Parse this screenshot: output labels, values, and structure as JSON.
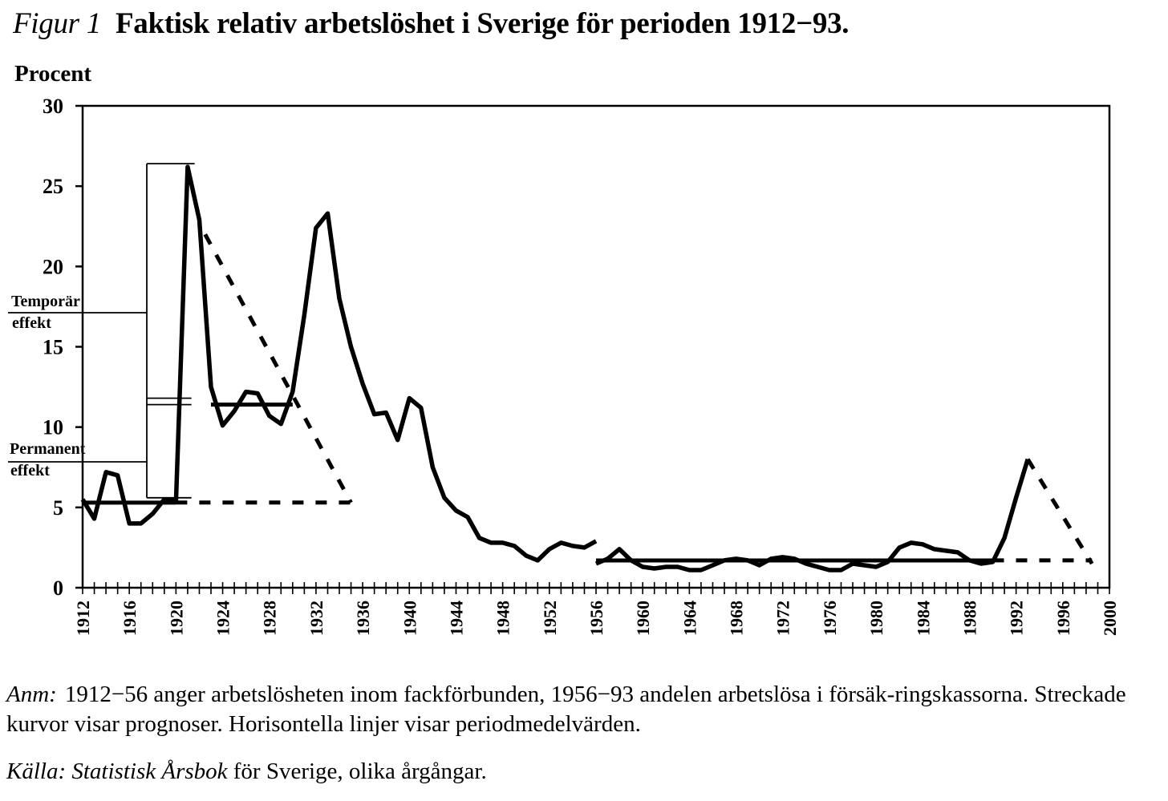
{
  "caption": {
    "figure_label": "Figur 1",
    "title": "Faktisk relativ arbetslöshet i Sverige för perioden 1912−93."
  },
  "note": {
    "lead": "Anm:",
    "text": "1912−56 anger arbetslösheten inom fackförbunden, 1956−93 andelen arbetslösa i försäk-ringskassorna. Streckade kurvor visar prognoser. Horisontella linjer visar periodmedelvärden."
  },
  "source": {
    "lead": "Källa:",
    "book": "Statistisk Årsbok",
    "rest": "för Sverige, olika årgångar."
  },
  "chart_data": {
    "type": "line",
    "ylabel": "Procent",
    "xlim": [
      1912,
      2000
    ],
    "ylim": [
      0,
      30
    ],
    "y_ticks": [
      0,
      5,
      10,
      15,
      20,
      25,
      30
    ],
    "x_tick_labels": [
      "1912",
      "1916",
      "1920",
      "1924",
      "1928",
      "1932",
      "1936",
      "1940",
      "1944",
      "1948",
      "1952",
      "1956",
      "1960",
      "1964",
      "1968",
      "1972",
      "1976",
      "1980",
      "1984",
      "1988",
      "1992",
      "1996",
      "2000"
    ],
    "grid": false,
    "series": [
      {
        "style": "solid",
        "x": [
          1912,
          1913,
          1914,
          1915,
          1916,
          1917,
          1918,
          1919,
          1920,
          1921,
          1922,
          1923,
          1924,
          1925,
          1926,
          1927,
          1928,
          1929,
          1930,
          1931,
          1932,
          1933,
          1934,
          1935,
          1936,
          1937,
          1938,
          1939,
          1940,
          1941,
          1942,
          1943,
          1944,
          1945,
          1946,
          1947,
          1948,
          1949,
          1950,
          1951,
          1952,
          1953,
          1954,
          1955,
          1956
        ],
        "y": [
          5.5,
          4.3,
          7.2,
          7.0,
          4.0,
          4.0,
          4.6,
          5.5,
          5.4,
          26.2,
          22.9,
          12.5,
          10.1,
          11.0,
          12.2,
          12.1,
          10.7,
          10.2,
          12.2,
          17.0,
          22.4,
          23.3,
          18.0,
          15.0,
          12.7,
          10.8,
          10.9,
          9.2,
          11.8,
          11.2,
          7.5,
          5.6,
          4.8,
          4.4,
          3.1,
          2.8,
          2.8,
          2.6,
          2.0,
          1.7,
          2.4,
          2.8,
          2.6,
          2.5,
          2.9
        ]
      },
      {
        "style": "solid",
        "x": [
          1956,
          1957,
          1958,
          1959,
          1960,
          1961,
          1962,
          1963,
          1964,
          1965,
          1966,
          1967,
          1968,
          1969,
          1970,
          1971,
          1972,
          1973,
          1974,
          1975,
          1976,
          1977,
          1978,
          1979,
          1980,
          1981,
          1982,
          1983,
          1984,
          1985,
          1986,
          1987,
          1988,
          1989,
          1990,
          1991,
          1992,
          1993
        ],
        "y": [
          1.5,
          1.8,
          2.4,
          1.7,
          1.3,
          1.2,
          1.3,
          1.3,
          1.1,
          1.1,
          1.4,
          1.7,
          1.8,
          1.7,
          1.4,
          1.8,
          1.9,
          1.8,
          1.5,
          1.3,
          1.1,
          1.1,
          1.5,
          1.4,
          1.3,
          1.6,
          2.5,
          2.8,
          2.7,
          2.4,
          2.3,
          2.2,
          1.7,
          1.5,
          1.6,
          3.1,
          5.6,
          8.0
        ]
      },
      {
        "style": "dashed",
        "x": [
          1922.5,
          1935
        ],
        "y": [
          22.0,
          5.3
        ]
      },
      {
        "style": "dashed",
        "x": [
          1920,
          1935
        ],
        "y": [
          5.3,
          5.3
        ]
      },
      {
        "style": "dashed",
        "x": [
          1993,
          1998.5
        ],
        "y": [
          8.0,
          1.5
        ]
      },
      {
        "style": "dashed",
        "x": [
          1990,
          1998.5
        ],
        "y": [
          1.7,
          1.7
        ]
      }
    ],
    "period_means": [
      {
        "x": [
          1912,
          1920
        ],
        "y": 5.3
      },
      {
        "x": [
          1923,
          1930
        ],
        "y": 11.4
      },
      {
        "x": [
          1956,
          1990
        ],
        "y": 1.7
      }
    ],
    "effect_bracket": {
      "outer_top_y": 26.4,
      "temporary_level_y": 11.6,
      "permanent_level_y": 5.6
    },
    "annotations": [
      {
        "text": "Temporär",
        "text2": "effekt"
      },
      {
        "text": "Permanent",
        "text2": "effekt"
      }
    ]
  }
}
